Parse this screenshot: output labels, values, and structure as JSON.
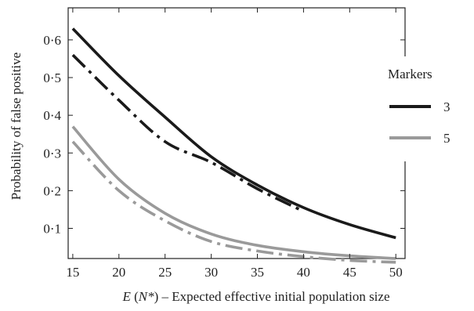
{
  "chart_data": {
    "type": "line",
    "xlabel": "E (N*) – Expected effective initial population size",
    "xlabel_parts": [
      "E",
      " (",
      "N*",
      ") – Expected effective initial population size"
    ],
    "ylabel": "Probability of false positive",
    "xlim": [
      14.5,
      51
    ],
    "ylim": [
      0.02,
      0.685
    ],
    "x_ticks": [
      15,
      20,
      25,
      30,
      35,
      40,
      45,
      50
    ],
    "x_tick_labels": [
      "15",
      "20",
      "25",
      "30",
      "35",
      "40",
      "45",
      "50"
    ],
    "y_ticks": [
      0.1,
      0.2,
      0.3,
      0.4,
      0.5,
      0.6
    ],
    "y_tick_labels": [
      "0·1",
      "0·2",
      "0·3",
      "0·4",
      "0·5",
      "0·6"
    ],
    "x": [
      15,
      20,
      25,
      30,
      35,
      40,
      45,
      50
    ],
    "series": [
      {
        "marker_group": "3",
        "style": "solid",
        "color": "#1a1a1a",
        "values": [
          0.63,
          0.505,
          0.395,
          0.29,
          0.215,
          0.155,
          0.11,
          0.075
        ]
      },
      {
        "marker_group": "3",
        "style": "dashdot",
        "color": "#1a1a1a",
        "values": [
          0.56,
          0.44,
          0.33,
          0.275,
          0.205,
          0.145,
          null,
          null
        ]
      },
      {
        "marker_group": "5",
        "style": "solid",
        "color": "#9a9a9a",
        "values": [
          0.37,
          0.23,
          0.14,
          0.085,
          0.055,
          0.038,
          0.027,
          0.02
        ]
      },
      {
        "marker_group": "5",
        "style": "dashdot",
        "color": "#9a9a9a",
        "values": [
          0.33,
          0.2,
          0.12,
          0.065,
          0.04,
          0.025,
          0.015,
          0.01
        ]
      }
    ],
    "legend": {
      "title": "Markers",
      "placement": "right",
      "entries": [
        {
          "label": "3",
          "color": "#1a1a1a"
        },
        {
          "label": "5",
          "color": "#9a9a9a"
        }
      ]
    },
    "grid": false
  }
}
